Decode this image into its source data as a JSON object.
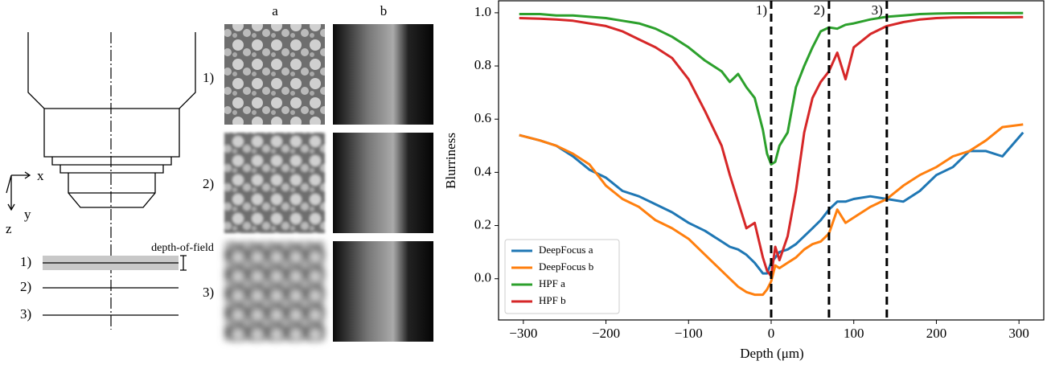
{
  "diagram": {
    "axes": [
      "x",
      "y",
      "z"
    ],
    "depth_of_field": "depth-of-field",
    "planes": [
      "1)",
      "2)",
      "3)"
    ]
  },
  "images": {
    "columns": [
      "a",
      "b"
    ],
    "rows": [
      "1)",
      "2)",
      "3)"
    ]
  },
  "chart_data": {
    "type": "line",
    "x_label": "Depth (μm)",
    "y_label": "Blurriness",
    "x": [
      -305,
      -280,
      -260,
      -240,
      -220,
      -200,
      -180,
      -160,
      -140,
      -120,
      -100,
      -80,
      -60,
      -50,
      -40,
      -30,
      -20,
      -10,
      -5,
      0,
      5,
      10,
      20,
      30,
      40,
      50,
      60,
      70,
      80,
      90,
      100,
      120,
      140,
      160,
      180,
      200,
      220,
      240,
      260,
      280,
      305
    ],
    "series": [
      {
        "name": "DeepFocus a",
        "color": "#1f77b4",
        "values": [
          0.54,
          0.52,
          0.5,
          0.46,
          0.41,
          0.38,
          0.33,
          0.31,
          0.28,
          0.25,
          0.21,
          0.18,
          0.14,
          0.12,
          0.11,
          0.09,
          0.06,
          0.02,
          0.02,
          0.06,
          0.08,
          0.1,
          0.11,
          0.13,
          0.16,
          0.19,
          0.22,
          0.26,
          0.29,
          0.29,
          0.3,
          0.31,
          0.3,
          0.29,
          0.33,
          0.39,
          0.42,
          0.48,
          0.48,
          0.46,
          0.55
        ]
      },
      {
        "name": "DeepFocus b",
        "color": "#ff7f0e",
        "values": [
          0.54,
          0.52,
          0.5,
          0.47,
          0.43,
          0.35,
          0.3,
          0.27,
          0.22,
          0.19,
          0.15,
          0.09,
          0.03,
          0.0,
          -0.03,
          -0.05,
          -0.06,
          -0.06,
          -0.04,
          -0.01,
          0.05,
          0.04,
          0.06,
          0.08,
          0.11,
          0.13,
          0.14,
          0.17,
          0.26,
          0.21,
          0.23,
          0.27,
          0.3,
          0.35,
          0.39,
          0.42,
          0.46,
          0.48,
          0.52,
          0.57,
          0.58
        ]
      },
      {
        "name": "HPF a",
        "color": "#2ca02c",
        "values": [
          0.995,
          0.995,
          0.99,
          0.99,
          0.985,
          0.98,
          0.97,
          0.96,
          0.94,
          0.91,
          0.87,
          0.82,
          0.78,
          0.74,
          0.77,
          0.72,
          0.68,
          0.56,
          0.47,
          0.43,
          0.44,
          0.5,
          0.55,
          0.72,
          0.8,
          0.87,
          0.93,
          0.945,
          0.94,
          0.955,
          0.96,
          0.975,
          0.985,
          0.99,
          0.995,
          0.997,
          0.998,
          0.998,
          0.999,
          0.999,
          0.999
        ]
      },
      {
        "name": "HPF b",
        "color": "#d62728",
        "values": [
          0.98,
          0.978,
          0.975,
          0.97,
          0.96,
          0.95,
          0.93,
          0.9,
          0.87,
          0.83,
          0.75,
          0.63,
          0.5,
          0.39,
          0.29,
          0.19,
          0.21,
          0.08,
          0.03,
          0.01,
          0.12,
          0.07,
          0.16,
          0.33,
          0.55,
          0.68,
          0.74,
          0.78,
          0.85,
          0.75,
          0.87,
          0.92,
          0.95,
          0.965,
          0.975,
          0.98,
          0.982,
          0.983,
          0.983,
          0.983,
          0.984
        ]
      }
    ],
    "vlines": [
      {
        "x": 0,
        "label": "1)"
      },
      {
        "x": 70,
        "label": "2)"
      },
      {
        "x": 140,
        "label": "3)"
      }
    ],
    "xlim": [
      -330,
      330
    ],
    "ylim": [
      -0.155,
      1.045
    ],
    "xticks": [
      {
        "value": -300,
        "label": "−300"
      },
      {
        "value": -200,
        "label": "−200"
      },
      {
        "value": -100,
        "label": "−100"
      },
      0,
      100,
      200,
      300
    ],
    "yticks": [
      {
        "value": 0,
        "label": "0.0"
      },
      0.2,
      0.4,
      0.6,
      0.8,
      {
        "value": 1,
        "label": "1.0"
      }
    ],
    "legend": "lower left"
  }
}
